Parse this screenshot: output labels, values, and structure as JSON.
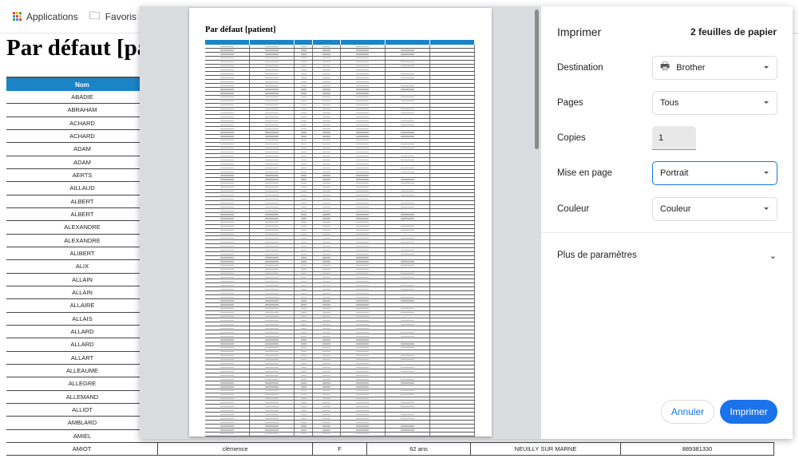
{
  "bookmarks": {
    "apps": "Applications",
    "favorites": "Favoris du"
  },
  "page": {
    "title": "Par défaut [patient]",
    "visible_title": "Par défaut [pat"
  },
  "table": {
    "header_first": "Nom",
    "names": [
      "ABADIE",
      "ABRAHAM",
      "ACHARD",
      "ACHARD",
      "ADAM",
      "ADAM",
      "AERTS",
      "AILLAUD",
      "ALBERT",
      "ALBERT",
      "ALEXANDRE",
      "ALEXANDRE",
      "ALIBERT",
      "ALIX",
      "ALLAIN",
      "ALLAIN",
      "ALLAIRE",
      "ALLAIS",
      "ALLARD",
      "ALLARD",
      "ALLART",
      "ALLEAUME",
      "ALLEGRE",
      "ALLEMAND",
      "ALLIOT",
      "AMBLARD",
      "AMIEL"
    ],
    "last_row": {
      "nom": "AMIOT",
      "prenom": "clémence",
      "sexe": "F",
      "age": "62 ans",
      "ville": "NEUILLY SUR MARNE",
      "telephone": "889381330"
    }
  },
  "preview": {
    "title": "Par défaut [patient]"
  },
  "print": {
    "title": "Imprimer",
    "sheets": "2 feuilles de papier",
    "destination_label": "Destination",
    "destination": "Brother",
    "pages_label": "Pages",
    "pages": "Tous",
    "copies_label": "Copies",
    "copies": "1",
    "layout_label": "Mise en page",
    "layout": "Portrait",
    "color_label": "Couleur",
    "color": "Couleur",
    "more": "Plus de paramètres",
    "cancel": "Annuler",
    "print": "Imprimer",
    "accent": "#1a73e8"
  }
}
